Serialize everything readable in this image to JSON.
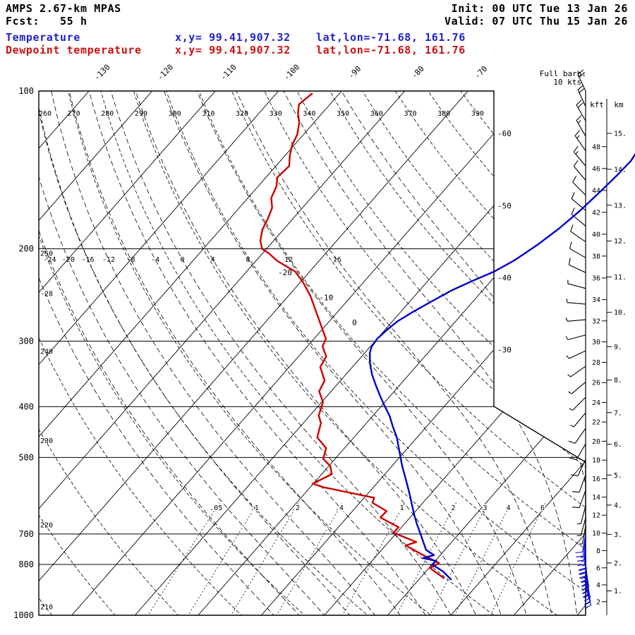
{
  "header": {
    "model": "AMPS 2.67-km MPAS",
    "fcst": "Fcst:   55 h",
    "init": "Init: 00 UTC Tue 13 Jan 26",
    "valid": "Valid: 07 UTC Thu 15 Jan 26",
    "temp_label": "Temperature",
    "temp_xy": "x,y= 99.41,907.32",
    "temp_latlon": "lat,lon=-71.68, 161.76",
    "dewp_label": "Dewpoint temperature",
    "dewp_xy": "x,y= 99.41,907.32",
    "dewp_latlon": "lat,lon=-71.68, 161.76"
  },
  "barb_legend": {
    "line1": "Full barb:",
    "line2": "10 kts"
  },
  "axes": {
    "pressure_ticks": [
      100,
      200,
      300,
      400,
      500,
      700,
      800,
      1000
    ],
    "kft_label": "kft",
    "km_label": "km",
    "kft_ticks": [
      2,
      4,
      6,
      8,
      10,
      12,
      14,
      16,
      18,
      20,
      22,
      24,
      26,
      28,
      30,
      32,
      34,
      36,
      38,
      40,
      42,
      44,
      46,
      48
    ],
    "km_ticks": [
      1,
      2,
      3,
      4,
      5,
      6,
      7,
      8,
      9,
      10,
      11,
      12,
      13,
      14,
      15
    ],
    "isotherm_top_labels": [
      -130,
      -120,
      -110,
      -100,
      -90,
      -80,
      -70
    ],
    "isotherm_right_labels": [
      -60,
      -50,
      -40,
      -30,
      -20,
      -10,
      0
    ],
    "dry_adiabat_top_labels": [
      260,
      270,
      280,
      290,
      300,
      310,
      320,
      330,
      340,
      350,
      360,
      370,
      380,
      390
    ],
    "dry_adiabat_left_labels": [
      250,
      240,
      230,
      220,
      210
    ],
    "moist_adiabat_labels": [
      -28,
      -24,
      -20,
      -16,
      -12,
      -8,
      -4,
      0,
      4,
      8,
      12,
      16
    ],
    "mixing_ratio_labels": [
      {
        "v": 0.05,
        "label": ".05"
      },
      {
        "v": 0.1,
        "label": ".1"
      },
      {
        "v": 0.2,
        "label": ".2"
      },
      {
        "v": 0.4,
        "label": ".4"
      },
      {
        "v": 1,
        "label": "1"
      },
      {
        "v": 2,
        "label": "2"
      },
      {
        "v": 3,
        "label": "3"
      },
      {
        "v": 4,
        "label": "4"
      },
      {
        "v": 6,
        "label": "6"
      }
    ]
  },
  "colors": {
    "temperature_line": "#0000cc",
    "dewpoint_line": "#cc0000",
    "grid": "#000000",
    "barb_upper": "#000000",
    "barb_lower": "#0000cc"
  },
  "chart_data": {
    "type": "skewt-logp",
    "pressure_axis_range_hPa": [
      100,
      1000
    ],
    "isotherm_spacing_C": 10,
    "temperature_profile": {
      "p_hPa": [
        856,
        825,
        800,
        788,
        778,
        768,
        750,
        720,
        696,
        670,
        645,
        615,
        586,
        550,
        519,
        503,
        480,
        458,
        437,
        416,
        398,
        380,
        363,
        347,
        331,
        316,
        307,
        297,
        286,
        275,
        264,
        253,
        240,
        230,
        221,
        210,
        197,
        183,
        170,
        156,
        145,
        136,
        131
      ],
      "t_C": [
        -4.8,
        -7.3,
        -10.0,
        -9.8,
        -12.3,
        -11.0,
        -13.0,
        -14.8,
        -16.3,
        -18.0,
        -19.6,
        -21.5,
        -23.4,
        -26.0,
        -28.4,
        -29.6,
        -31.4,
        -33.2,
        -35.3,
        -37.4,
        -39.6,
        -41.8,
        -43.9,
        -45.9,
        -47.7,
        -49.2,
        -49.8,
        -50.0,
        -49.7,
        -49.2,
        -48.1,
        -46.7,
        -44.9,
        -42.9,
        -40.8,
        -39.1,
        -37.7,
        -36.5,
        -35.7,
        -35.1,
        -34.7,
        -34.5,
        -34.8
      ]
    },
    "dewpoint_profile": {
      "p_hPa": [
        851,
        813,
        795,
        768,
        736,
        725,
        696,
        679,
        651,
        633,
        610,
        597,
        570,
        561,
        538,
        519,
        503,
        480,
        458,
        430,
        416,
        392,
        374,
        357,
        336,
        321,
        307,
        297,
        279,
        262,
        246,
        232,
        221,
        211,
        204,
        200,
        193,
        184,
        175,
        167,
        160,
        152,
        146,
        139,
        133,
        127,
        121,
        115,
        110,
        106,
        101
      ],
      "t_C": [
        -6.1,
        -9.8,
        -9.1,
        -12.7,
        -16.8,
        -15.6,
        -20.5,
        -20.5,
        -24.7,
        -24.6,
        -28.0,
        -28.4,
        -37.9,
        -40.1,
        -38.4,
        -39.8,
        -41.9,
        -42.9,
        -45.8,
        -47.2,
        -48.6,
        -49.8,
        -51.9,
        -52.5,
        -55.1,
        -55.6,
        -57.6,
        -58.1,
        -60.9,
        -63.7,
        -66.5,
        -69.5,
        -72.3,
        -76.6,
        -79.0,
        -80.7,
        -82.1,
        -83.3,
        -84.0,
        -84.8,
        -86.3,
        -87.1,
        -88.2,
        -87.9,
        -89.2,
        -90.3,
        -91.0,
        -92.3,
        -93.9,
        -94.9,
        -94.3
      ]
    },
    "winds": [
      {
        "p": 100,
        "dir": 335,
        "kt": 20
      },
      {
        "p": 107,
        "dir": 335,
        "kt": 20
      },
      {
        "p": 114,
        "dir": 330,
        "kt": 20
      },
      {
        "p": 122,
        "dir": 330,
        "kt": 15
      },
      {
        "p": 130,
        "dir": 325,
        "kt": 15
      },
      {
        "p": 139,
        "dir": 320,
        "kt": 15
      },
      {
        "p": 148,
        "dir": 320,
        "kt": 10
      },
      {
        "p": 158,
        "dir": 315,
        "kt": 10
      },
      {
        "p": 169,
        "dir": 310,
        "kt": 10
      },
      {
        "p": 181,
        "dir": 310,
        "kt": 10
      },
      {
        "p": 194,
        "dir": 305,
        "kt": 10
      },
      {
        "p": 208,
        "dir": 300,
        "kt": 10
      },
      {
        "p": 222,
        "dir": 295,
        "kt": 10
      },
      {
        "p": 238,
        "dir": 285,
        "kt": 5
      },
      {
        "p": 255,
        "dir": 275,
        "kt": 5
      },
      {
        "p": 273,
        "dir": 265,
        "kt": 5
      },
      {
        "p": 292,
        "dir": 255,
        "kt": 5
      },
      {
        "p": 313,
        "dir": 245,
        "kt": 5
      },
      {
        "p": 335,
        "dir": 235,
        "kt": 5
      },
      {
        "p": 359,
        "dir": 230,
        "kt": 5
      },
      {
        "p": 384,
        "dir": 225,
        "kt": 5
      },
      {
        "p": 411,
        "dir": 220,
        "kt": 5
      },
      {
        "p": 440,
        "dir": 215,
        "kt": 10
      },
      {
        "p": 471,
        "dir": 210,
        "kt": 10
      },
      {
        "p": 504,
        "dir": 205,
        "kt": 10
      },
      {
        "p": 540,
        "dir": 200,
        "kt": 10
      },
      {
        "p": 578,
        "dir": 200,
        "kt": 10
      },
      {
        "p": 619,
        "dir": 195,
        "kt": 5
      },
      {
        "p": 652,
        "dir": 195,
        "kt": 5
      },
      {
        "p": 675,
        "dir": 190,
        "kt": 5
      },
      {
        "p": 700,
        "dir": 190,
        "kt": 10
      },
      {
        "p": 712,
        "dir": 188,
        "kt": 10
      },
      {
        "p": 724,
        "dir": 185,
        "kt": 15
      },
      {
        "p": 737,
        "dir": 183,
        "kt": 15
      },
      {
        "p": 750,
        "dir": 180,
        "kt": 15
      },
      {
        "p": 763,
        "dir": 180,
        "kt": 20
      },
      {
        "p": 776,
        "dir": 178,
        "kt": 20
      },
      {
        "p": 789,
        "dir": 175,
        "kt": 20
      },
      {
        "p": 802,
        "dir": 172,
        "kt": 25
      },
      {
        "p": 815,
        "dir": 170,
        "kt": 25
      },
      {
        "p": 828,
        "dir": 170,
        "kt": 20
      },
      {
        "p": 841,
        "dir": 168,
        "kt": 20
      },
      {
        "p": 856,
        "dir": 165,
        "kt": 20
      },
      {
        "p": 870,
        "dir": 165,
        "kt": 15
      },
      {
        "p": 885,
        "dir": 163,
        "kt": 15
      }
    ]
  }
}
